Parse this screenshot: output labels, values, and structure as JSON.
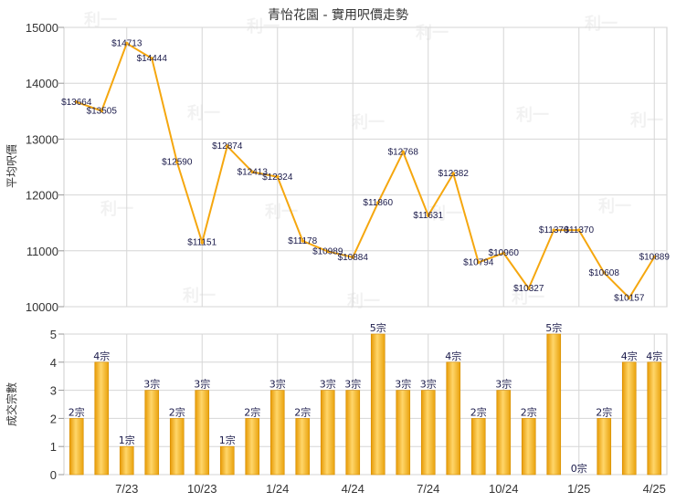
{
  "chart_data": [
    {
      "type": "line",
      "title": "青怡花園 - 實用呎價走勢",
      "ylabel": "平均呎價",
      "ylim": [
        10000,
        15000
      ],
      "yticks": [
        10000,
        11000,
        12000,
        13000,
        14000,
        15000
      ],
      "xtick_labels": [
        "7/23",
        "10/23",
        "1/24",
        "4/24",
        "7/24",
        "10/24",
        "1/25",
        "4/25"
      ],
      "series": [
        {
          "color": "#f5a70f",
          "values": [
            13664,
            13505,
            14713,
            14444,
            12590,
            11151,
            12874,
            12413,
            12324,
            11178,
            10989,
            10884,
            11860,
            12768,
            11631,
            12382,
            10794,
            10960,
            10327,
            11370,
            11370,
            10608,
            10157,
            10889
          ],
          "labels": [
            "$13664",
            "$13505",
            "$14713",
            "$14444",
            "$12590",
            "$11151",
            "$12874",
            "$12413",
            "$12324",
            "$11178",
            "$10989",
            "$10884",
            "$11860",
            "$12768",
            "$11631",
            "$12382",
            "$10794",
            "$10960",
            "$10327",
            "$11370",
            "$11370",
            "$10608",
            "$10157",
            "$10889"
          ]
        }
      ],
      "grid": true
    },
    {
      "type": "bar",
      "ylabel": "成交宗數",
      "ylim": [
        0,
        5
      ],
      "yticks": [
        0,
        1,
        2,
        3,
        4,
        5
      ],
      "xtick_labels": [
        "7/23",
        "10/23",
        "1/24",
        "4/24",
        "7/24",
        "10/24",
        "1/25",
        "4/25"
      ],
      "series": [
        {
          "color": "#f5a70f",
          "values": [
            2,
            4,
            1,
            3,
            2,
            3,
            1,
            2,
            3,
            2,
            3,
            3,
            5,
            3,
            3,
            4,
            2,
            3,
            2,
            5,
            0,
            2,
            4,
            4
          ],
          "labels": [
            "2宗",
            "4宗",
            "1宗",
            "3宗",
            "2宗",
            "3宗",
            "1宗",
            "2宗",
            "3宗",
            "2宗",
            "3宗",
            "3宗",
            "5宗",
            "3宗",
            "3宗",
            "4宗",
            "2宗",
            "3宗",
            "2宗",
            "5宗",
            "0宗",
            "2宗",
            "4宗",
            "4宗"
          ]
        }
      ],
      "grid": true
    }
  ],
  "watermark": "利一"
}
